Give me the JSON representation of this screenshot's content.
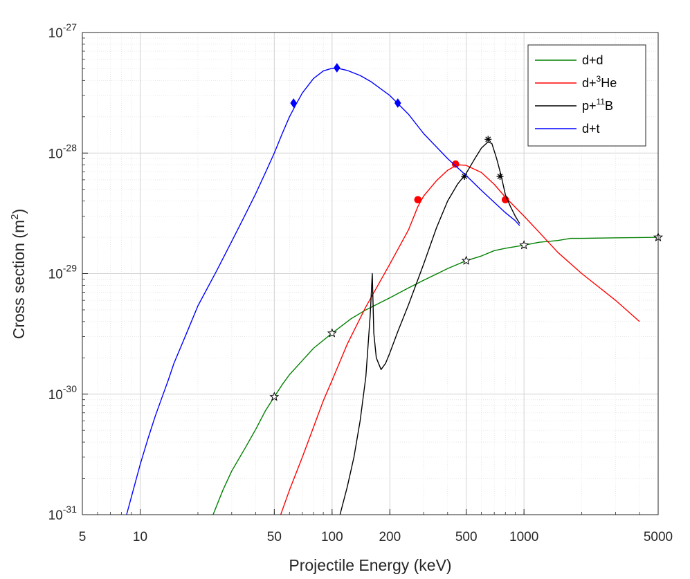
{
  "chart_data": {
    "type": "line",
    "title": "",
    "xlabel": "Projectile Energy (keV)",
    "ylabel_parts": [
      "Cross section (m",
      "2",
      ")"
    ],
    "xscale": "log",
    "yscale": "log",
    "xlim": [
      5,
      5000
    ],
    "ylim": [
      1e-31,
      1e-27
    ],
    "grid": true,
    "minor_grid": true,
    "legend_position": "top-right",
    "x_ticks": [
      {
        "value": 5,
        "label": "5"
      },
      {
        "value": 10,
        "label": "10"
      },
      {
        "value": 50,
        "label": "50"
      },
      {
        "value": 100,
        "label": "100"
      },
      {
        "value": 200,
        "label": "200"
      },
      {
        "value": 500,
        "label": "500"
      },
      {
        "value": 1000,
        "label": "1000"
      },
      {
        "value": 5000,
        "label": "5000"
      }
    ],
    "y_ticks": [
      {
        "value": 1e-31,
        "base": "10",
        "exp": "-31"
      },
      {
        "value": 1e-30,
        "base": "10",
        "exp": "-30"
      },
      {
        "value": 1e-29,
        "base": "10",
        "exp": "-29"
      },
      {
        "value": 1e-28,
        "base": "10",
        "exp": "-28"
      },
      {
        "value": 1e-27,
        "base": "10",
        "exp": "-27"
      }
    ],
    "series": [
      {
        "key": "dd",
        "legend": {
          "text": "d+d",
          "sup": "",
          "tail": ""
        },
        "color": "#008000",
        "marker": "star",
        "x": [
          24,
          27,
          30,
          35,
          40,
          45,
          50,
          55,
          60,
          70,
          80,
          100,
          125,
          150,
          200,
          250,
          300,
          400,
          500,
          600,
          700,
          800,
          1000,
          1200,
          1500,
          1750,
          2000,
          3000,
          4000,
          5000
        ],
        "y": [
          1e-31,
          1.6e-31,
          2.3e-31,
          3.5e-31,
          5.1e-31,
          7.3e-31,
          9.5e-31,
          1.2e-30,
          1.45e-30,
          1.9e-30,
          2.4e-30,
          3.2e-30,
          4.2e-30,
          5e-30,
          6.3e-30,
          7.6e-30,
          8.8e-30,
          1.1e-29,
          1.28e-29,
          1.4e-29,
          1.55e-29,
          1.62e-29,
          1.72e-29,
          1.82e-29,
          1.88e-29,
          1.96e-29,
          1.96e-29,
          1.98e-29,
          1.99e-29,
          2e-29
        ],
        "marker_x": [
          50,
          100,
          500,
          1000,
          5000
        ],
        "marker_y": [
          9.5e-31,
          3.2e-30,
          1.28e-29,
          1.72e-29,
          2e-29
        ]
      },
      {
        "key": "dhe3",
        "legend": {
          "text": "d+",
          "sup": "3",
          "tail": "He"
        },
        "color": "#ff0000",
        "marker": "circle",
        "x": [
          54,
          60,
          70,
          80,
          90,
          100,
          120,
          150,
          200,
          250,
          280,
          300,
          350,
          400,
          450,
          500,
          600,
          700,
          800,
          1000,
          1200,
          1500,
          2000,
          3000,
          4000
        ],
        "y": [
          1e-31,
          1.6e-31,
          3e-31,
          5.3e-31,
          8.8e-31,
          1.3e-30,
          2.6e-30,
          5.3e-30,
          1.2e-29,
          2.3e-29,
          3.6e-29,
          4.4e-29,
          5.9e-29,
          7.2e-29,
          8e-29,
          7.9e-29,
          6.9e-29,
          5.5e-29,
          4.3e-29,
          3e-29,
          2.2e-29,
          1.5e-29,
          1e-29,
          6e-30,
          4e-30
        ],
        "marker_x": [
          280,
          440,
          800
        ],
        "marker_y": [
          4.1e-29,
          8.1e-29,
          4.1e-29
        ]
      },
      {
        "key": "pb11",
        "legend": {
          "text": "p+",
          "sup": "11",
          "tail": "B"
        },
        "color": "#000000",
        "marker": "asterisk",
        "x": [
          110,
          120,
          130,
          140,
          150,
          158,
          162,
          165,
          170,
          180,
          190,
          200,
          220,
          250,
          300,
          350,
          400,
          450,
          500,
          550,
          600,
          650,
          680,
          720,
          760,
          800,
          850,
          900,
          950
        ],
        "y": [
          1e-31,
          1.7e-31,
          3e-31,
          6e-31,
          1.4e-30,
          4.5e-30,
          1e-29,
          3.2e-30,
          2e-30,
          1.6e-30,
          1.8e-30,
          2.2e-30,
          3.3e-30,
          5.5e-30,
          1.2e-29,
          2.4e-29,
          4e-29,
          5.5e-29,
          6.8e-29,
          8.8e-29,
          1.1e-28,
          1.24e-28,
          1.2e-28,
          9e-29,
          6.5e-29,
          4.5e-29,
          3.6e-29,
          3e-29,
          2.6e-29
        ],
        "marker_x": [
          490,
          650,
          750
        ],
        "marker_y": [
          6.4e-29,
          1.3e-28,
          6.4e-29
        ]
      },
      {
        "key": "dt",
        "legend": {
          "text": "d+t",
          "sup": "",
          "tail": ""
        },
        "color": "#0000ff",
        "marker": "diamond",
        "x": [
          8.5,
          9,
          10,
          11,
          12,
          13,
          14,
          15,
          16,
          18,
          20,
          25,
          30,
          35,
          40,
          45,
          50,
          55,
          60,
          65,
          70,
          80,
          90,
          100,
          110,
          120,
          140,
          160,
          200,
          250,
          300,
          400,
          500,
          600,
          700,
          800,
          900,
          950
        ],
        "y": [
          1e-31,
          1.4e-31,
          2.6e-31,
          4.3e-31,
          6.6e-31,
          9.4e-31,
          1.3e-30,
          1.8e-30,
          2.3e-30,
          3.6e-30,
          5.4e-30,
          1.05e-29,
          1.85e-29,
          3e-29,
          4.6e-29,
          6.9e-29,
          1e-28,
          1.45e-28,
          2e-28,
          2.55e-28,
          3.15e-28,
          4.15e-28,
          4.8e-28,
          5.05e-28,
          5e-28,
          4.85e-28,
          4.4e-28,
          3.9e-28,
          3e-28,
          2.1e-28,
          1.45e-28,
          9e-29,
          6.5e-29,
          4.9e-29,
          3.9e-29,
          3.2e-29,
          2.75e-29,
          2.5e-29
        ],
        "marker_x": [
          63,
          106,
          220
        ],
        "marker_y": [
          2.6e-28,
          5.1e-28,
          2.6e-28
        ]
      }
    ]
  }
}
